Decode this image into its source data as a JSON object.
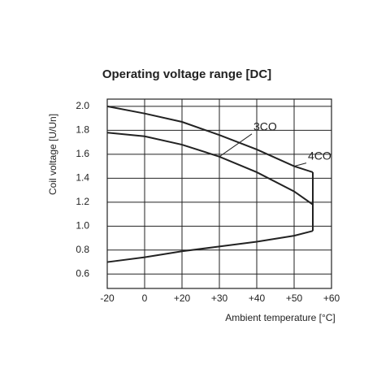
{
  "chart_data": {
    "type": "line",
    "title": "Operating voltage range [DC]",
    "x_label": "Ambient temperature [°C]",
    "y_label": "Coil voltage [U/Un]",
    "xlim": [
      -20,
      60
    ],
    "xticks": [
      -20,
      0,
      {
        "value": 20,
        "label": "+20"
      },
      {
        "value": 30,
        "label": "+30"
      },
      {
        "value": 40,
        "label": "+40"
      },
      {
        "value": 50,
        "label": "+50"
      },
      {
        "value": 60,
        "label": "+60"
      }
    ],
    "ylim": [
      0.48,
      2.06
    ],
    "yticks": [
      {
        "value": 2,
        "label": "2.0"
      },
      1.8,
      1.6,
      1.4,
      1.2,
      {
        "value": 1,
        "label": "1.0"
      },
      0.8,
      0.6
    ],
    "grid": true,
    "series": [
      {
        "name": "4CO",
        "color": "#222222",
        "x": [
          -20,
          0,
          20,
          30,
          40,
          50,
          55
        ],
        "values": [
          2.0,
          1.94,
          1.87,
          1.76,
          1.64,
          1.5,
          1.45
        ]
      },
      {
        "name": "3CO",
        "color": "#222222",
        "x": [
          -20,
          0,
          20,
          30,
          40,
          50,
          55
        ],
        "values": [
          1.78,
          1.75,
          1.68,
          1.58,
          1.45,
          1.29,
          1.18
        ]
      },
      {
        "color": "#222222",
        "x": [
          -20,
          0,
          20,
          30,
          40,
          50,
          55
        ],
        "values": [
          0.7,
          0.74,
          0.79,
          0.83,
          0.87,
          0.92,
          0.96
        ]
      },
      {
        "color": "#222222",
        "x": [
          55,
          55
        ],
        "values": [
          1.45,
          0.96
        ]
      }
    ]
  }
}
